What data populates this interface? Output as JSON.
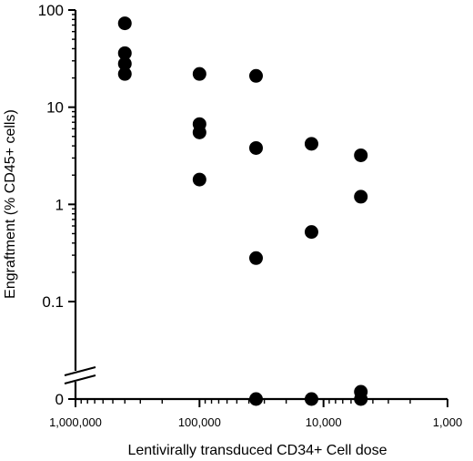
{
  "chart_data": {
    "type": "scatter",
    "title": "",
    "xlabel": "Lentivirally transduced CD34+ Cell dose",
    "ylabel": "Engraftment (% CD45+ cells)",
    "x_scale": "log",
    "x_reversed": true,
    "xlim": [
      1000000,
      1000
    ],
    "x_ticks": [
      {
        "value": 1000000,
        "label": "1,000,000"
      },
      {
        "value": 100000,
        "label": "100,000"
      },
      {
        "value": 10000,
        "label": "10,000"
      },
      {
        "value": 1000,
        "label": "1,000"
      }
    ],
    "y_scale": "log",
    "y_axis_break": true,
    "ylim": [
      0.01,
      100
    ],
    "y_ticks": [
      {
        "value": 100,
        "label": "100"
      },
      {
        "value": 10,
        "label": "10"
      },
      {
        "value": 1,
        "label": "1"
      },
      {
        "value": 0.1,
        "label": "0.1"
      },
      {
        "value": 0.01,
        "label": "0"
      }
    ],
    "grid": false,
    "legend": "none",
    "marker_color": "#000000",
    "series": [
      {
        "points": [
          {
            "x": 400000,
            "y": 73
          },
          {
            "x": 400000,
            "y": 36
          },
          {
            "x": 400000,
            "y": 28
          },
          {
            "x": 400000,
            "y": 22
          },
          {
            "x": 100000,
            "y": 22
          },
          {
            "x": 100000,
            "y": 6.7
          },
          {
            "x": 100000,
            "y": 5.5
          },
          {
            "x": 100000,
            "y": 1.8
          },
          {
            "x": 35000,
            "y": 21
          },
          {
            "x": 35000,
            "y": 3.8
          },
          {
            "x": 35000,
            "y": 0.28
          },
          {
            "x": 35000,
            "y": 0.01
          },
          {
            "x": 12500,
            "y": 4.2
          },
          {
            "x": 12500,
            "y": 0.52
          },
          {
            "x": 12500,
            "y": 0.01
          },
          {
            "x": 5000,
            "y": 3.2
          },
          {
            "x": 5000,
            "y": 1.2
          },
          {
            "x": 5000,
            "y": 0.01
          },
          {
            "x": 5000,
            "y": 0.0107
          }
        ]
      }
    ]
  }
}
